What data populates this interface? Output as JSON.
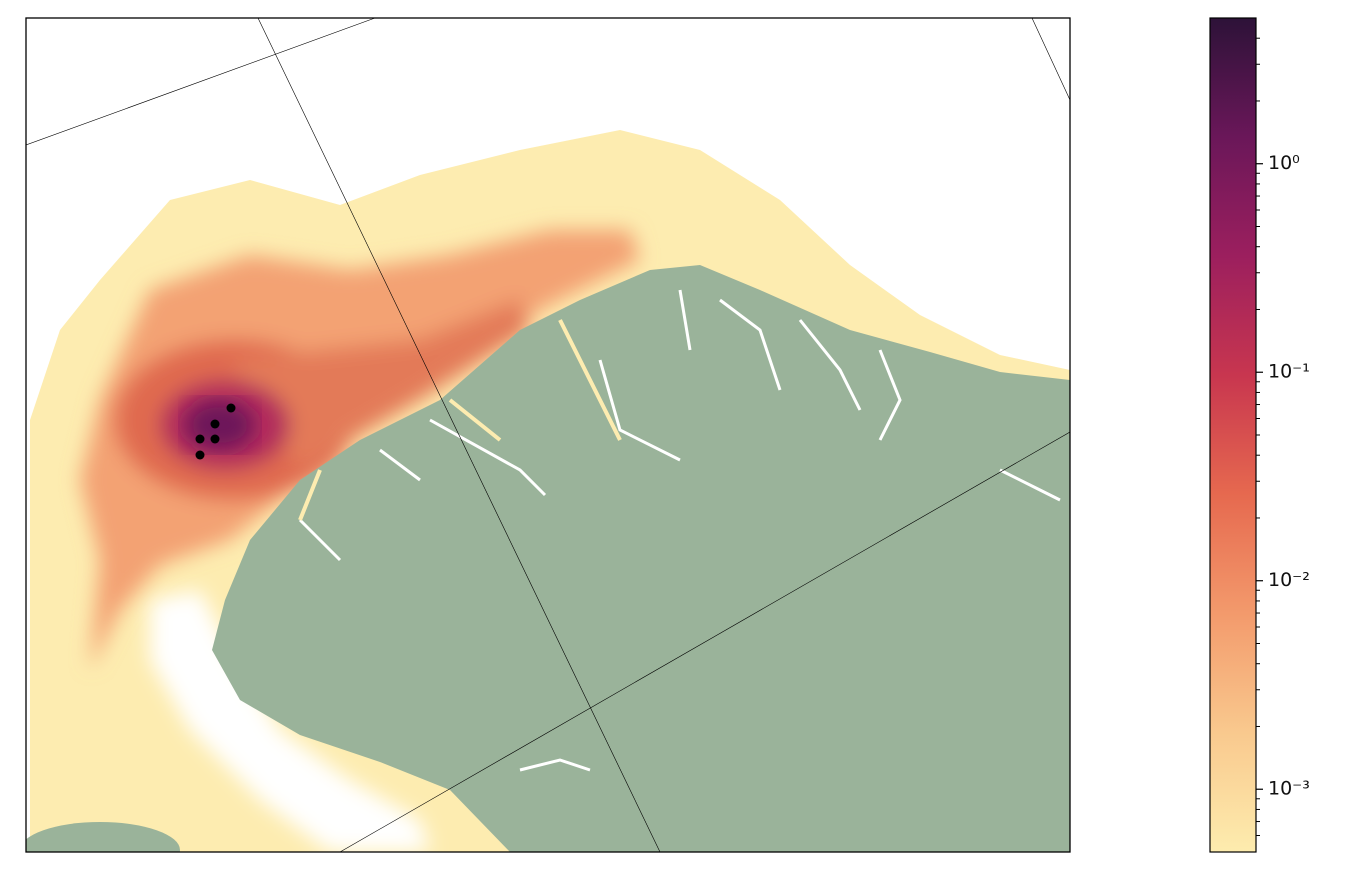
{
  "colorbar": {
    "log": true,
    "lim": [
      0.0005,
      5
    ],
    "colors": [
      "#fdecae",
      "#f9c98e",
      "#f39a6c",
      "#e6694f",
      "#c8364f",
      "#9c1f5e",
      "#6a1759",
      "#2d1238"
    ],
    "ticks": [
      {
        "value": 0.001,
        "label": "10⁻³"
      },
      {
        "value": 0.01,
        "label": "10⁻²"
      },
      {
        "value": 0.1,
        "label": "10⁻¹"
      },
      {
        "value": 1,
        "label": "10⁰"
      }
    ],
    "minor_ticks": [
      0.0006,
      0.0007,
      0.0008,
      0.0009,
      0.002,
      0.003,
      0.004,
      0.005,
      0.006,
      0.007,
      0.008,
      0.009,
      0.02,
      0.03,
      0.04,
      0.05,
      0.06,
      0.07,
      0.08,
      0.09,
      0.2,
      0.3,
      0.4,
      0.5,
      0.6,
      0.7,
      0.8,
      0.9,
      2,
      3,
      4
    ]
  }
}
